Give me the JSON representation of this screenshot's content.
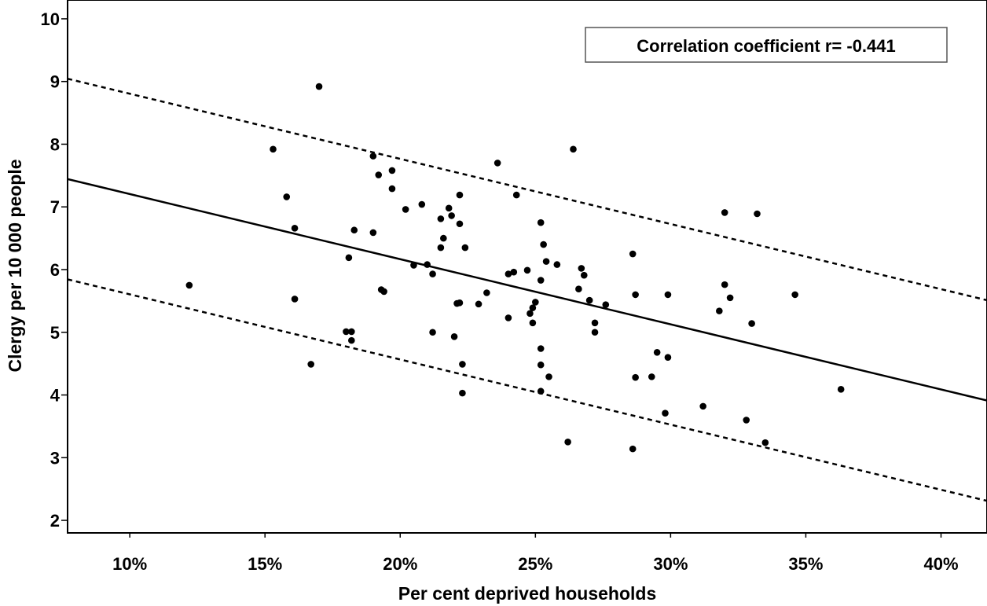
{
  "chart_data": {
    "type": "scatter",
    "xlabel": "Per cent deprived households",
    "ylabel": "Clergy per 10 000 people",
    "xlim": [
      7.7,
      41.7
    ],
    "ylim": [
      1.8,
      10.3
    ],
    "x_ticks": [
      10,
      15,
      20,
      25,
      30,
      35,
      40
    ],
    "x_tick_labels": [
      "10%",
      "15%",
      "20%",
      "25%",
      "30%",
      "35%",
      "40%"
    ],
    "y_ticks": [
      2,
      3,
      4,
      5,
      6,
      7,
      8,
      9,
      10
    ],
    "y_tick_labels": [
      "2",
      "3",
      "4",
      "5",
      "6",
      "7",
      "8",
      "9",
      "10"
    ],
    "grid": false,
    "legend": null,
    "annotation": "Correlation coefficient r= -0.441",
    "annotation_placement": "top-right",
    "colors": {
      "points": "#000000",
      "lines": "#000000",
      "background": "#ffffff"
    },
    "points": [
      [
        12.2,
        5.75
      ],
      [
        15.3,
        7.92
      ],
      [
        15.8,
        7.16
      ],
      [
        16.1,
        6.66
      ],
      [
        16.1,
        5.53
      ],
      [
        16.7,
        4.49
      ],
      [
        17.0,
        8.92
      ],
      [
        18.0,
        5.01
      ],
      [
        18.1,
        6.19
      ],
      [
        18.2,
        5.01
      ],
      [
        18.2,
        4.87
      ],
      [
        18.3,
        6.63
      ],
      [
        19.0,
        6.59
      ],
      [
        19.0,
        7.81
      ],
      [
        19.2,
        7.51
      ],
      [
        19.3,
        5.68
      ],
      [
        19.4,
        5.65
      ],
      [
        19.7,
        7.58
      ],
      [
        19.7,
        7.29
      ],
      [
        20.2,
        6.96
      ],
      [
        20.5,
        6.07
      ],
      [
        20.8,
        7.04
      ],
      [
        21.0,
        6.08
      ],
      [
        21.2,
        5.93
      ],
      [
        21.2,
        5.0
      ],
      [
        21.5,
        6.35
      ],
      [
        21.5,
        6.81
      ],
      [
        21.6,
        6.5
      ],
      [
        21.8,
        6.98
      ],
      [
        21.9,
        6.86
      ],
      [
        22.0,
        4.93
      ],
      [
        22.1,
        5.46
      ],
      [
        22.2,
        5.47
      ],
      [
        22.2,
        7.19
      ],
      [
        22.2,
        6.73
      ],
      [
        22.3,
        4.03
      ],
      [
        22.3,
        4.49
      ],
      [
        22.4,
        6.35
      ],
      [
        22.9,
        5.45
      ],
      [
        23.2,
        5.63
      ],
      [
        23.6,
        7.7
      ],
      [
        24.0,
        5.23
      ],
      [
        24.0,
        5.93
      ],
      [
        24.2,
        5.96
      ],
      [
        24.3,
        7.19
      ],
      [
        24.7,
        5.99
      ],
      [
        24.8,
        5.3
      ],
      [
        24.9,
        5.15
      ],
      [
        24.9,
        5.39
      ],
      [
        25.0,
        5.48
      ],
      [
        25.2,
        5.83
      ],
      [
        25.2,
        6.75
      ],
      [
        25.2,
        4.74
      ],
      [
        25.2,
        4.48
      ],
      [
        25.2,
        4.06
      ],
      [
        25.3,
        6.4
      ],
      [
        25.4,
        6.13
      ],
      [
        25.5,
        4.29
      ],
      [
        25.8,
        6.08
      ],
      [
        26.2,
        3.25
      ],
      [
        26.4,
        7.92
      ],
      [
        26.6,
        5.69
      ],
      [
        26.7,
        6.02
      ],
      [
        26.8,
        5.91
      ],
      [
        27.0,
        5.51
      ],
      [
        27.2,
        5.15
      ],
      [
        27.2,
        5.0
      ],
      [
        27.6,
        5.44
      ],
      [
        28.6,
        6.25
      ],
      [
        28.6,
        3.14
      ],
      [
        28.7,
        5.6
      ],
      [
        28.7,
        4.28
      ],
      [
        29.3,
        4.29
      ],
      [
        29.5,
        4.68
      ],
      [
        29.8,
        3.71
      ],
      [
        29.9,
        4.6
      ],
      [
        29.9,
        5.6
      ],
      [
        31.2,
        3.82
      ],
      [
        31.8,
        5.34
      ],
      [
        32.0,
        6.91
      ],
      [
        32.0,
        5.76
      ],
      [
        32.2,
        5.55
      ],
      [
        32.8,
        3.6
      ],
      [
        33.0,
        5.14
      ],
      [
        33.2,
        6.89
      ],
      [
        33.5,
        3.24
      ],
      [
        34.6,
        5.6
      ],
      [
        36.3,
        4.09
      ]
    ],
    "fit_line": {
      "slope": -0.1039,
      "intercept": 8.244
    },
    "prediction_bands": {
      "offset": 1.6,
      "style": "dashed"
    }
  }
}
